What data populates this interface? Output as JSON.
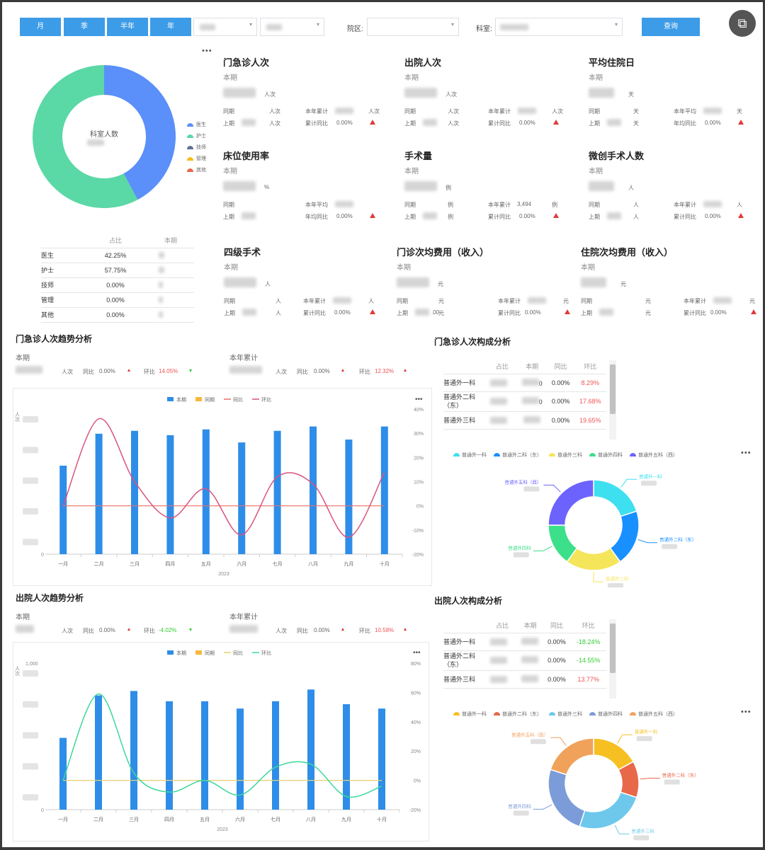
{
  "toolbar": {
    "btn_month": "月",
    "btn_quarter": "季",
    "btn_half": "半年",
    "btn_year": "年",
    "hospital_label": "院区:",
    "dept_label": "科室:",
    "query_label": "查询"
  },
  "staff": {
    "donut_center": "科室人数",
    "legend": [
      "医生",
      "护士",
      "技师",
      "管理",
      "其他"
    ],
    "colors": [
      "#5b8ff9",
      "#5ad8a6",
      "#5d7092",
      "#f6bd16",
      "#e8684a"
    ],
    "table_headers": [
      "占比",
      "本期"
    ],
    "rows": [
      {
        "name": "医生",
        "pct": "42.25%"
      },
      {
        "name": "护士",
        "pct": "57.75%"
      },
      {
        "name": "技师",
        "pct": "0.00%"
      },
      {
        "name": "管理",
        "pct": "0.00%"
      },
      {
        "name": "其他",
        "pct": "0.00%"
      }
    ],
    "chart_data": {
      "type": "pie",
      "categories": [
        "医生",
        "护士",
        "技师",
        "管理",
        "其他"
      ],
      "values": [
        42.25,
        57.75,
        0,
        0,
        0
      ]
    }
  },
  "kpis": [
    {
      "title": "门急诊人次",
      "period": "本期",
      "unit": "人次",
      "l1a": "同期",
      "u1a": "人次",
      "l1b": "本年累计",
      "u1b": "人次",
      "l2a": "上期",
      "u2a": "人次",
      "l2b": "累计同比",
      "v2b": "0.00%"
    },
    {
      "title": "出院人次",
      "period": "本期",
      "unit": "人次",
      "l1a": "同期",
      "u1a": "人次",
      "l1b": "本年累计",
      "u1b": "人次",
      "l2a": "上期",
      "u2a": "人次",
      "l2b": "累计同比",
      "v2b": "0.00%"
    },
    {
      "title": "平均住院日",
      "period": "本期",
      "unit": "天",
      "l1a": "同期",
      "u1a": "天",
      "l1b": "本年平均",
      "u1b": "天",
      "l2a": "上期",
      "u2a": "天",
      "l2b": "年均同比",
      "v2b": "0.00%"
    },
    {
      "title": "床位使用率",
      "period": "本期",
      "unit": "%",
      "l1a": "同期",
      "u1a": "",
      "l1b": "本年平均",
      "u1b": "",
      "l2a": "上期",
      "u2a": "",
      "l2b": "年均同比",
      "v2b": "0.00%"
    },
    {
      "title": "手术量",
      "period": "本期",
      "unit": "例",
      "l1a": "同期",
      "u1a": "例",
      "l1b": "本年累计",
      "v1b": "3,494",
      "u1b": "例",
      "l2a": "上期",
      "u2a": "例",
      "l2b": "累计同比",
      "v2b": "0.00%"
    },
    {
      "title": "微创手术人数",
      "period": "本期",
      "unit": "人",
      "l1a": "同期",
      "u1a": "人",
      "l1b": "本年累计",
      "u1b": "人",
      "l2a": "上期",
      "u2a": "人",
      "l2b": "累计同比",
      "v2b": "0.00%"
    },
    {
      "title": "四级手术",
      "period": "本期",
      "unit": "人",
      "l1a": "同期",
      "u1a": "人",
      "l1b": "本年累计",
      "u1b": "人",
      "l2a": "上期",
      "u2a": "人",
      "l2b": "累计同比",
      "v2b": "0.00%"
    },
    {
      "title": "门诊次均费用（收入）",
      "period": "本期",
      "unit": "元",
      "l1a": "同期",
      "u1a": "元",
      "l1b": "本年累计",
      "u1b": "元",
      "l2a": "上期",
      "v2a": ".00",
      "u2a": "元",
      "l2b": "累计同比",
      "v2b": "0.00%"
    },
    {
      "title": "住院次均费用（收入）",
      "period": "本期",
      "unit": "元",
      "l1a": "同期",
      "u1a": "元",
      "l1b": "本年累计",
      "u1b": "元",
      "l2a": "上期",
      "u2a": "元",
      "l2b": "累计同比",
      "v2b": "0.00%"
    }
  ],
  "outpatient_trend": {
    "title": "门急诊人次趋势分析",
    "current_label": "本期",
    "ytd_label": "本年累计",
    "unit": "人次",
    "yoy_label": "同比",
    "yoy": "0.00%",
    "mom_label": "环比",
    "mom": "14.05%",
    "ytd_yoy": "0.00%",
    "ytd_mom": "12.32%",
    "legend": [
      "本期",
      "同期",
      "同比",
      "环比"
    ],
    "ylabel": "人次",
    "xlabel": "2023",
    "right_ticks": [
      "40%",
      "30%",
      "20%",
      "10%",
      "0%",
      "-10%",
      "-20%"
    ],
    "chart_data": {
      "type": "bar",
      "categories": [
        "一月",
        "二月",
        "三月",
        "四月",
        "五月",
        "六月",
        "七月",
        "八月",
        "九月",
        "十月"
      ],
      "series": [
        {
          "name": "本期",
          "values": [
            0.61,
            0.83,
            0.85,
            0.82,
            0.86,
            0.77,
            0.85,
            0.88,
            0.79,
            0.88
          ]
        },
        {
          "name": "同比",
          "values": [
            0,
            0,
            0,
            0,
            0,
            0,
            0,
            0,
            0,
            0
          ]
        },
        {
          "name": "环比",
          "values": [
            0,
            36,
            10,
            -5,
            7,
            -12,
            12,
            9,
            -13,
            14
          ]
        }
      ],
      "ylim_right": [
        -20,
        40
      ]
    }
  },
  "outpatient_comp": {
    "title": "门急诊人次构成分析",
    "headers": [
      "占比",
      "本期",
      "同比",
      "环比"
    ],
    "rows": [
      {
        "name": "普通外一科",
        "b": "0",
        "yoy": "0.00%",
        "mom": "8.29%"
      },
      {
        "name": "普通外二科（东）",
        "b": "0",
        "yoy": "0.00%",
        "mom": "17.68%"
      },
      {
        "name": "普通外三科",
        "b": "",
        "yoy": "0.00%",
        "mom": "19.65%"
      }
    ],
    "legend": [
      "普通外一科",
      "普通外二科（东）",
      "普通外三科",
      "普通外四科",
      "普通外五科（西）"
    ],
    "colors": [
      "#3ee0f0",
      "#1890ff",
      "#f5e55a",
      "#3ce08a",
      "#6c63ff"
    ],
    "labels": [
      "普通外一科",
      "普通外二科（东）",
      "普通外三科",
      "普通外四科",
      "普通外五科（西）"
    ],
    "chart_data": {
      "type": "pie",
      "categories": [
        "普通外一科",
        "普通外二科（东）",
        "普通外三科",
        "普通外四科",
        "普通外五科（西）"
      ],
      "values": [
        20,
        20,
        20,
        15,
        25
      ]
    }
  },
  "discharge_trend": {
    "title": "出院人次趋势分析",
    "current_label": "本期",
    "ytd_label": "本年累计",
    "unit": "人次",
    "yoy_label": "同比",
    "yoy": "0.00%",
    "mom_label": "环比",
    "mom": "-4.02%",
    "ytd_yoy": "0.00%",
    "ytd_mom": "10.58%",
    "legend": [
      "本期",
      "同期",
      "同比",
      "环比"
    ],
    "ylabel": "人次",
    "ytop": "1,000",
    "xlabel": "2023",
    "right_ticks": [
      "80%",
      "60%",
      "40%",
      "20%",
      "0%",
      "-20%"
    ],
    "chart_data": {
      "type": "bar",
      "categories": [
        "一月",
        "二月",
        "三月",
        "四月",
        "五月",
        "六月",
        "七月",
        "八月",
        "九月",
        "十月"
      ],
      "series": [
        {
          "name": "本期",
          "values": [
            0.49,
            0.78,
            0.81,
            0.74,
            0.74,
            0.69,
            0.74,
            0.82,
            0.72,
            0.69
          ]
        },
        {
          "name": "同比",
          "values": [
            0,
            0,
            0,
            0,
            0,
            0,
            0,
            0,
            0,
            0
          ]
        },
        {
          "name": "环比",
          "values": [
            0,
            59,
            5,
            -8,
            0,
            -10,
            9,
            11,
            -11,
            -4
          ]
        }
      ],
      "ylim_right": [
        -20,
        80
      ]
    }
  },
  "discharge_comp": {
    "title": "出院人次构成分析",
    "headers": [
      "占比",
      "本期",
      "同比",
      "环比"
    ],
    "rows": [
      {
        "name": "普通外一科",
        "b": "",
        "yoy": "0.00%",
        "mom": "-18.24%"
      },
      {
        "name": "普通外二科（东）",
        "b": "",
        "yoy": "0.00%",
        "mom": "-14.55%"
      },
      {
        "name": "普通外三科",
        "b": "",
        "yoy": "0.00%",
        "mom": "13.77%"
      }
    ],
    "legend": [
      "普通外一科",
      "普通外二科（东）",
      "普通外三科",
      "普通外四科",
      "普通外五科（西）"
    ],
    "colors": [
      "#f6c022",
      "#e8684a",
      "#6dc8ec",
      "#7b9cd8",
      "#f0a25a"
    ],
    "labels": [
      "普通外一科",
      "普通外二科（东）",
      "普通外三科",
      "普通外四科",
      "普通外五科（西）"
    ],
    "chart_data": {
      "type": "pie",
      "categories": [
        "普通外一科",
        "普通外二科（东）",
        "普通外三科",
        "普通外四科",
        "普通外五科（西）"
      ],
      "values": [
        17,
        13,
        25,
        25,
        20
      ]
    }
  },
  "more_label": "•••"
}
